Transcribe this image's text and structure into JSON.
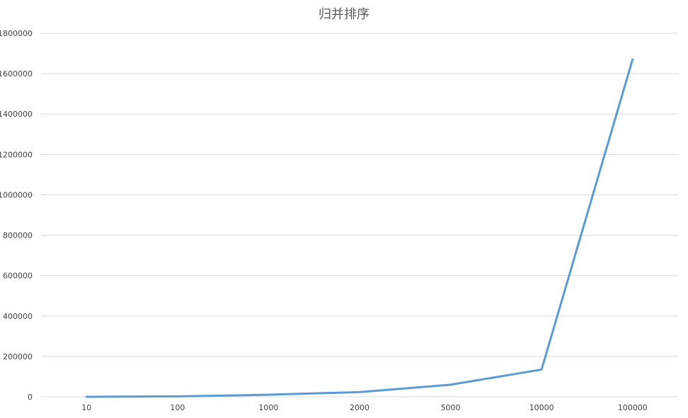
{
  "chart_data": {
    "type": "line",
    "title": "归并排序",
    "xlabel": "",
    "ylabel": "",
    "categories": [
      "10",
      "100",
      "1000",
      "2000",
      "5000",
      "10000",
      "100000"
    ],
    "series": [
      {
        "values": [
          50,
          2000,
          10000,
          23000,
          60000,
          135000,
          1670000
        ],
        "color": "#5b9bd5"
      }
    ],
    "ylim": [
      0,
      1800000
    ],
    "yticks": [
      0,
      200000,
      400000,
      600000,
      800000,
      1000000,
      1200000,
      1400000,
      1600000,
      1800000
    ],
    "ytick_labels": [
      "0",
      "200000",
      "400000",
      "600000",
      "800000",
      "1000000",
      "1200000",
      "1400000",
      "1600000",
      "1800000"
    ],
    "grid": true,
    "legend": "none",
    "gridline_color": "#d9d9d9",
    "axis_color": "#d9d9d9"
  }
}
